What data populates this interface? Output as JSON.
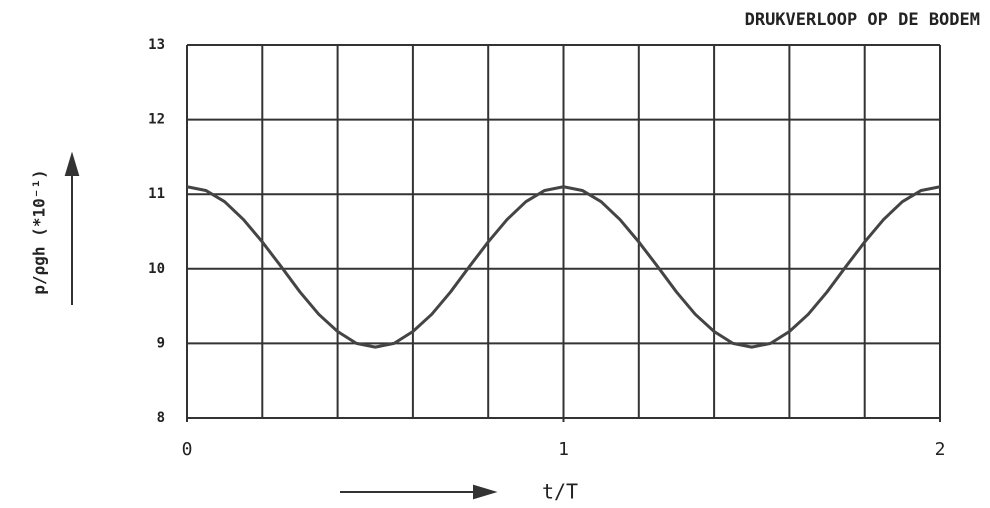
{
  "chart_data": {
    "type": "line",
    "title": "DRUKVERLOOP OP DE BODEM",
    "ylabel": "p/ρgh (*10⁻¹)",
    "xlabel": "t/T",
    "x": [
      0,
      0.05,
      0.1,
      0.15,
      0.2,
      0.25,
      0.3,
      0.35,
      0.4,
      0.45,
      0.5,
      0.55,
      0.6,
      0.65,
      0.7,
      0.75,
      0.8,
      0.85,
      0.9,
      0.95,
      1,
      1.05,
      1.1,
      1.15,
      1.2,
      1.25,
      1.3,
      1.35,
      1.4,
      1.45,
      1.5,
      1.55,
      1.6,
      1.65,
      1.7,
      1.75,
      1.8,
      1.85,
      1.9,
      1.95,
      2
    ],
    "series": [
      {
        "color": "#444444",
        "values": [
          11.1,
          11.05,
          10.9,
          10.66,
          10.36,
          10.03,
          9.69,
          9.39,
          9.16,
          9.0,
          8.95,
          9.0,
          9.16,
          9.39,
          9.69,
          10.03,
          10.36,
          10.66,
          10.9,
          11.05,
          11.1,
          11.05,
          10.9,
          10.66,
          10.36,
          10.03,
          9.69,
          9.39,
          9.16,
          9.0,
          8.95,
          9.0,
          9.16,
          9.39,
          9.69,
          10.03,
          10.36,
          10.66,
          10.9,
          11.05,
          11.1
        ]
      }
    ],
    "xlim": [
      0,
      2
    ],
    "xticks": [
      0,
      1,
      2
    ],
    "xgrid": [
      0,
      0.2,
      0.4,
      0.6,
      0.8,
      1,
      1.2,
      1.4,
      1.6,
      1.8,
      2
    ],
    "ylim": [
      8,
      13
    ],
    "yticks": [
      8,
      9,
      10,
      11,
      12,
      13
    ],
    "grid": true
  }
}
